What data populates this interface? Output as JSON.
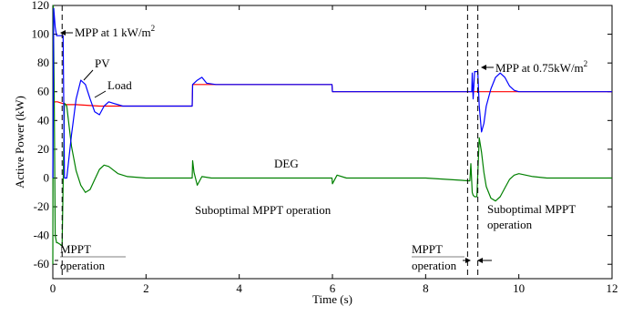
{
  "chart_data": {
    "type": "line",
    "xlabel": "Time (s)",
    "ylabel": "Active Power (kW)",
    "xlim": [
      0,
      12
    ],
    "ylim": [
      -70,
      120
    ],
    "xticks": [
      "0",
      "2",
      "4",
      "6",
      "8",
      "10",
      "12"
    ],
    "yticks": [
      "-60",
      "-40",
      "-20",
      "0",
      "20",
      "40",
      "60",
      "80",
      "100",
      "120"
    ],
    "grid": false,
    "series": [
      {
        "name": "PV",
        "color": "#0000ff",
        "x": [
          0,
          0.02,
          0.05,
          0.08,
          0.1,
          0.15,
          0.2,
          0.22,
          0.25,
          0.3,
          0.4,
          0.5,
          0.6,
          0.7,
          0.8,
          0.9,
          1.0,
          1.1,
          1.2,
          1.3,
          1.5,
          2.0,
          2.5,
          2.99,
          3.0,
          3.1,
          3.2,
          3.3,
          3.5,
          4.0,
          5.0,
          5.99,
          6.0,
          6.1,
          6.3,
          7.0,
          8.0,
          8.99,
          9.0,
          9.02,
          9.05,
          9.1,
          9.12,
          9.15,
          9.2,
          9.25,
          9.3,
          9.4,
          9.5,
          9.6,
          9.7,
          9.8,
          9.9,
          10.0,
          10.3,
          10.6,
          11.0,
          12.0
        ],
        "y": [
          0,
          118,
          105,
          99,
          99,
          99,
          99,
          99,
          0,
          0,
          30,
          55,
          68,
          65,
          55,
          46,
          44,
          50,
          53,
          52,
          50,
          50,
          50,
          50,
          65,
          68,
          70,
          66,
          65,
          65,
          65,
          65,
          60,
          60,
          60,
          60,
          60,
          60,
          73,
          55,
          74,
          74,
          74,
          50,
          32,
          38,
          50,
          62,
          70,
          73,
          70,
          64,
          61,
          60,
          60,
          60,
          60,
          60
        ]
      },
      {
        "name": "Load",
        "color": "#ff0000",
        "x": [
          0,
          0.05,
          0.1,
          0.2,
          0.3,
          0.5,
          1.0,
          2.0,
          2.99,
          3.0,
          4.0,
          5.99,
          6.0,
          7.0,
          8.0,
          9.0,
          10.0,
          11.0,
          12.0
        ],
        "y": [
          52,
          53,
          53,
          52,
          51,
          51,
          50,
          50,
          50,
          65,
          65,
          65,
          60,
          60,
          60,
          60,
          60,
          60,
          60
        ]
      },
      {
        "name": "DEG",
        "color": "#008000",
        "x": [
          0,
          0.01,
          0.03,
          0.05,
          0.08,
          0.1,
          0.15,
          0.2,
          0.25,
          0.3,
          0.4,
          0.5,
          0.6,
          0.7,
          0.8,
          0.9,
          1.0,
          1.1,
          1.2,
          1.4,
          1.6,
          2.0,
          2.5,
          2.99,
          3.0,
          3.03,
          3.1,
          3.2,
          3.4,
          4.0,
          5.0,
          5.99,
          6.0,
          6.1,
          6.3,
          7.0,
          8.0,
          8.95,
          8.97,
          9.0,
          9.02,
          9.05,
          9.1,
          9.15,
          9.2,
          9.25,
          9.3,
          9.4,
          9.5,
          9.6,
          9.7,
          9.8,
          9.9,
          10.0,
          10.3,
          10.6,
          11.0,
          12.0
        ],
        "y": [
          -60,
          120,
          60,
          -40,
          -45,
          -45,
          -46,
          -47,
          52,
          50,
          22,
          5,
          -5,
          -10,
          -8,
          -1,
          6,
          9,
          8,
          3,
          1,
          0,
          0,
          0,
          12,
          4,
          -5,
          1,
          0,
          0,
          0,
          0,
          -4,
          2,
          0,
          0,
          0,
          -2,
          10,
          -10,
          -12,
          -13,
          -13,
          28,
          18,
          4,
          -6,
          -14,
          -16,
          -13,
          -7,
          -1,
          2,
          3,
          1,
          0,
          0,
          0
        ]
      }
    ],
    "vlines": [
      0.2,
      8.9,
      9.12
    ],
    "annotations": {
      "mpp1": "MPP at 1 kW/m",
      "mpp1_sup": "2",
      "mpp2": "MPP at 0.75kW/m",
      "mpp2_sup": "2",
      "pv": "PV",
      "load": "Load",
      "deg": "DEG",
      "subopt_center": "Suboptimal MPPT operation",
      "subopt_right_1": "Suboptimal MPPT",
      "subopt_right_2": "operation",
      "mppt_left_1": "MPPT",
      "mppt_left_2": "operation",
      "mppt_mid_1": "MPPT",
      "mppt_mid_2": "operation"
    }
  }
}
